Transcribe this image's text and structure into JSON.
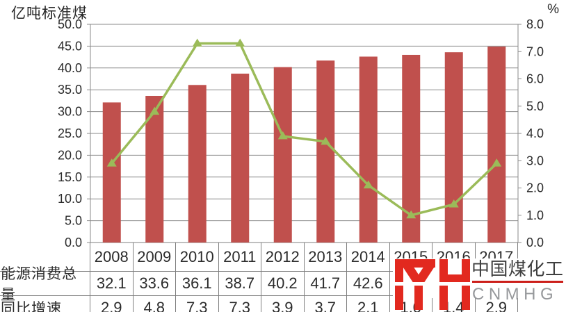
{
  "chart_data": {
    "type": "combo-bar-line",
    "title": "",
    "categories": [
      "2008",
      "2009",
      "2010",
      "2011",
      "2012",
      "2013",
      "2014",
      "2015",
      "2016",
      "2017"
    ],
    "series": [
      {
        "name": "能源消费总量",
        "chart": "bar",
        "axis": "left",
        "color": "#c0504d",
        "values": [
          32.1,
          33.6,
          36.1,
          38.7,
          40.2,
          41.7,
          42.6,
          43.0,
          43.6,
          44.9
        ]
      },
      {
        "name": "同比增速",
        "chart": "line",
        "axis": "right",
        "color": "#9bbb59",
        "marker": "triangle-up",
        "values": [
          2.9,
          4.8,
          7.3,
          7.3,
          3.9,
          3.7,
          2.1,
          1.0,
          1.4,
          2.9
        ]
      }
    ],
    "left_axis": {
      "title": "亿吨标准煤",
      "min": 0,
      "max": 50,
      "step": 5,
      "decimals": 1
    },
    "right_axis": {
      "title": "%",
      "min": 0,
      "max": 8,
      "step": 1,
      "decimals": 1
    },
    "gridlines": true,
    "legend": "none"
  },
  "table": {
    "rows": [
      {
        "label": "能源消费总量",
        "series_index": 0
      },
      {
        "label": "同比增速",
        "series_index": 1
      }
    ]
  },
  "logo": {
    "monogram": "YH",
    "name_cn": "中国煤化工",
    "name_en": "CNMHG",
    "brand_red": "#e2291f",
    "underline_red": "#cc1f1a",
    "en_gray": "#96989b"
  },
  "colors": {
    "bar": "#c0504d",
    "line": "#9bbb59",
    "grid": "#8a8a8a",
    "border": "#7f7f7f",
    "text": "#2b2b2b",
    "background": "#ffffff"
  }
}
